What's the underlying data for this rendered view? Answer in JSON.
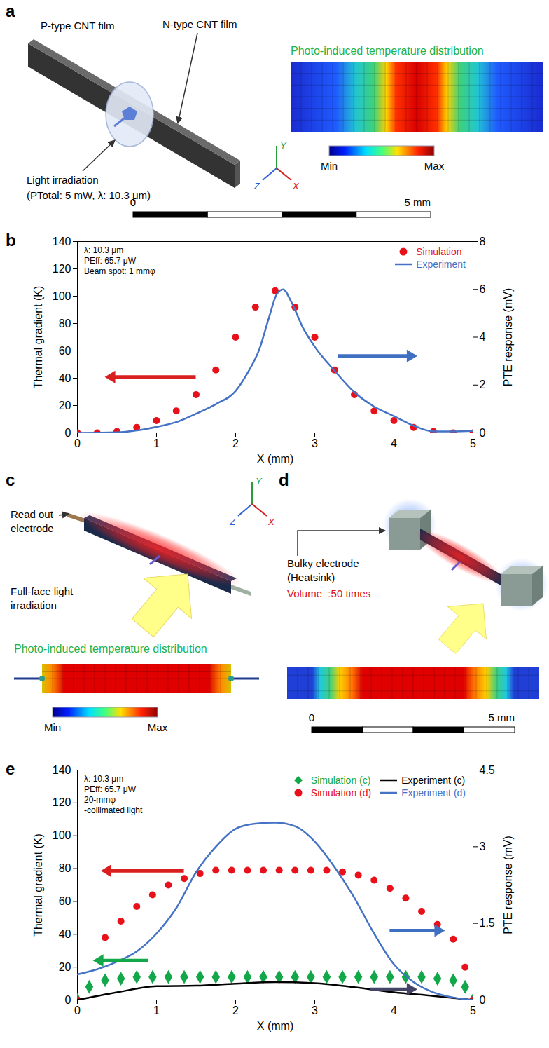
{
  "chart_data": [
    {
      "panel": "b",
      "type": "line",
      "xlabel": "X (mm)",
      "ylabel": "Thermal gradient (K)",
      "y2label": "PTE response (mV)",
      "xlim": [
        0,
        5
      ],
      "xticks": [
        0,
        1,
        2,
        3,
        4,
        5
      ],
      "ylim": [
        0,
        140
      ],
      "yticks": [
        0,
        20,
        40,
        60,
        80,
        100,
        120,
        140
      ],
      "y2lim": [
        0,
        8
      ],
      "y2ticks": [
        0,
        2,
        4,
        6,
        8
      ],
      "annotations": [
        "λ: 10.3 μm",
        "PEff: 65.7 μW",
        "Beam spot: 1 mmφ"
      ],
      "legend": "top-right",
      "series": [
        {
          "name": "Simulation",
          "type": "scatter",
          "marker": "circle",
          "color": "#e8101a",
          "x": [
            0,
            0.25,
            0.5,
            0.75,
            1,
            1.25,
            1.5,
            1.75,
            2,
            2.25,
            2.5,
            2.75,
            3,
            3.25,
            3.5,
            3.75,
            4,
            4.25,
            4.5,
            4.75,
            5
          ],
          "values": [
            0,
            0,
            1,
            4,
            9,
            16,
            28,
            46,
            70,
            92,
            104,
            92,
            70,
            46,
            28,
            16,
            9,
            4,
            1,
            0,
            0
          ]
        },
        {
          "name": "Experiment",
          "type": "line",
          "line_style": "solid",
          "color": "#4472c4",
          "axis": "y2",
          "x": [
            0,
            0.5,
            0.75,
            1,
            1.25,
            1.5,
            1.75,
            2,
            2.15,
            2.3,
            2.42,
            2.52,
            2.6,
            2.7,
            2.85,
            3,
            3.25,
            3.5,
            3.75,
            4,
            4.25,
            4.5,
            4.75,
            5
          ],
          "values": [
            0,
            0.02,
            0.1,
            0.25,
            0.45,
            0.8,
            1.2,
            1.75,
            2.5,
            3.5,
            4.8,
            5.8,
            6.0,
            5.5,
            4.4,
            3.6,
            2.6,
            1.7,
            1.1,
            0.7,
            0.3,
            0.06,
            0.06,
            0.08
          ]
        }
      ]
    },
    {
      "panel": "e",
      "type": "line",
      "xlabel": "X (mm)",
      "ylabel": "Thermal gradient (K)",
      "y2label": "PTE response (mV)",
      "xlim": [
        0,
        5
      ],
      "xticks": [
        0,
        1,
        2,
        3,
        4,
        5
      ],
      "ylim": [
        0,
        140
      ],
      "yticks": [
        0,
        20,
        40,
        60,
        80,
        100,
        120,
        140
      ],
      "y2lim": [
        0,
        4.5
      ],
      "y2ticks": [
        0,
        1.5,
        3,
        4.5
      ],
      "annotations": [
        "λ: 10.3 μm",
        "PEff: 65.7 μW",
        "20-mmφ",
        "-collimated light"
      ],
      "legend": "top-right",
      "series": [
        {
          "name": "Simulation (c)",
          "type": "scatter",
          "marker": "diamond",
          "color": "#12a84a",
          "x": [
            0,
            0.15,
            0.35,
            0.55,
            0.75,
            0.95,
            1.15,
            1.35,
            1.55,
            1.75,
            1.95,
            2.15,
            2.35,
            2.55,
            2.75,
            2.95,
            3.15,
            3.35,
            3.55,
            3.75,
            3.95,
            4.15,
            4.35,
            4.55,
            4.75,
            4.9,
            5
          ],
          "values": [
            0,
            8,
            12,
            13,
            14,
            14,
            14,
            14,
            14,
            14,
            14,
            14,
            14,
            14,
            14,
            14,
            14,
            14,
            14,
            14,
            14,
            14,
            14,
            13,
            12,
            8,
            0
          ]
        },
        {
          "name": "Experiment (c)",
          "type": "line",
          "line_style": "solid",
          "color": "#000000",
          "axis": "y2",
          "x": [
            0,
            0.5,
            1,
            1.5,
            2,
            2.5,
            3,
            3.5,
            4,
            4.5,
            5
          ],
          "values": [
            0,
            0.15,
            0.27,
            0.28,
            0.32,
            0.35,
            0.33,
            0.25,
            0.15,
            0.08,
            0
          ]
        },
        {
          "name": "Simulation (d)",
          "type": "scatter",
          "marker": "circle",
          "color": "#e8101a",
          "x": [
            0,
            0.35,
            0.55,
            0.75,
            0.95,
            1.15,
            1.35,
            1.55,
            1.75,
            1.95,
            2.15,
            2.35,
            2.55,
            2.75,
            2.95,
            3.15,
            3.35,
            3.55,
            3.75,
            3.95,
            4.15,
            4.35,
            4.55,
            4.75,
            4.9,
            5
          ],
          "values": [
            0,
            38,
            48,
            57,
            64,
            70,
            74,
            77,
            79,
            79,
            79,
            79,
            79,
            79,
            79,
            79,
            78,
            76,
            73,
            68,
            62,
            54,
            46,
            37,
            20,
            0
          ]
        },
        {
          "name": "Experiment (d)",
          "type": "line",
          "line_style": "solid",
          "color": "#4472c4",
          "axis": "y2",
          "x": [
            0,
            0.25,
            0.5,
            0.75,
            1,
            1.25,
            1.5,
            1.75,
            2,
            2.25,
            2.5,
            2.75,
            3,
            3.25,
            3.5,
            3.75,
            4,
            4.25,
            4.5,
            4.75,
            5
          ],
          "values": [
            0.5,
            0.6,
            0.75,
            0.95,
            1.3,
            1.8,
            2.5,
            3.0,
            3.35,
            3.45,
            3.47,
            3.4,
            3.1,
            2.6,
            2.0,
            1.3,
            0.7,
            0.35,
            0.15,
            0.05,
            0
          ]
        }
      ]
    }
  ],
  "diagrams": {
    "a": {
      "label": "a",
      "top_label": "P-type CNT film",
      "side_label": "N-type CNT film",
      "light_label": "Light irradiation",
      "light_params": "(PTotal: 5 mW, λ: 10.3 μm)",
      "map_title": "Photo-induced temperature distribution",
      "colorbar": [
        "Min",
        "Max"
      ],
      "scale": [
        "0",
        "5 mm"
      ],
      "axes": [
        "Y",
        "Z",
        "X"
      ]
    },
    "c": {
      "label": "c",
      "electrode_label": "Read out electrode",
      "light_label": "Full-face light irradiation",
      "map_title": "Photo-induced temperature distribution",
      "colorbar": [
        "Min",
        "Max"
      ],
      "axes": [
        "Y",
        "Z",
        "X"
      ]
    },
    "d": {
      "label": "d",
      "electrode_label": "Bulky electrode (Heatsink)",
      "volume_note": "Volume  :50 times",
      "scale": [
        "0",
        "5 mm"
      ]
    }
  }
}
